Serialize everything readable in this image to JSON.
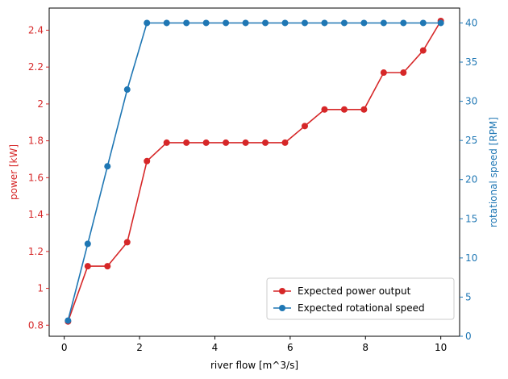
{
  "chart_data": {
    "type": "line",
    "xlabel": "river flow [m^3/s]",
    "xlim": [
      -0.4,
      10.5
    ],
    "xticks": [
      0,
      2,
      4,
      6,
      8,
      10
    ],
    "x": [
      0.1,
      0.624,
      1.148,
      1.672,
      2.196,
      2.72,
      3.244,
      3.768,
      4.292,
      4.816,
      5.34,
      5.864,
      6.388,
      6.912,
      7.436,
      7.96,
      8.484,
      9.008,
      9.532,
      10.0
    ],
    "left_axis": {
      "label": "power [kW]",
      "color": "#d62728",
      "ylim": [
        0.74,
        2.52
      ],
      "ticks": [
        0.8,
        1.0,
        1.2,
        1.4,
        1.6,
        1.8,
        2.0,
        2.2,
        2.4
      ]
    },
    "right_axis": {
      "label": "rotational speed [RPM]",
      "color": "#1f77b4",
      "ylim": [
        0,
        41.9
      ],
      "ticks": [
        0,
        5,
        10,
        15,
        20,
        25,
        30,
        35,
        40
      ]
    },
    "series": [
      {
        "name": "Expected power output",
        "axis": "left",
        "color": "#d62728",
        "values": [
          0.82,
          1.12,
          1.12,
          1.25,
          1.69,
          1.79,
          1.79,
          1.79,
          1.79,
          1.79,
          1.79,
          1.79,
          1.88,
          1.97,
          1.97,
          1.97,
          2.17,
          2.17,
          2.29,
          2.45
        ]
      },
      {
        "name": "Expected rotational speed",
        "axis": "right",
        "color": "#1f77b4",
        "values": [
          2.0,
          11.8,
          21.7,
          31.5,
          40,
          40,
          40,
          40,
          40,
          40,
          40,
          40,
          40,
          40,
          40,
          40,
          40,
          40,
          40,
          40
        ]
      }
    ],
    "legend_position": "lower-right",
    "grid": false
  }
}
